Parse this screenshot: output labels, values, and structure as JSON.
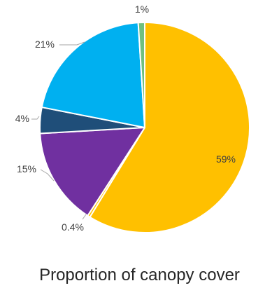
{
  "chart_data": {
    "type": "pie",
    "title": "Proportion of canopy cover",
    "slices": [
      {
        "label": "59%",
        "value": 59,
        "color": "#FFC000"
      },
      {
        "label": "0.4%",
        "value": 0.4,
        "color": "#FFC000"
      },
      {
        "label": "15%",
        "value": 15,
        "color": "#7030A0"
      },
      {
        "label": "4%",
        "value": 4,
        "color": "#1F4E79"
      },
      {
        "label": "21%",
        "value": 21,
        "color": "#00B0F0"
      },
      {
        "label": "1%",
        "value": 1,
        "color": "#70C080"
      }
    ],
    "legend": "none"
  }
}
